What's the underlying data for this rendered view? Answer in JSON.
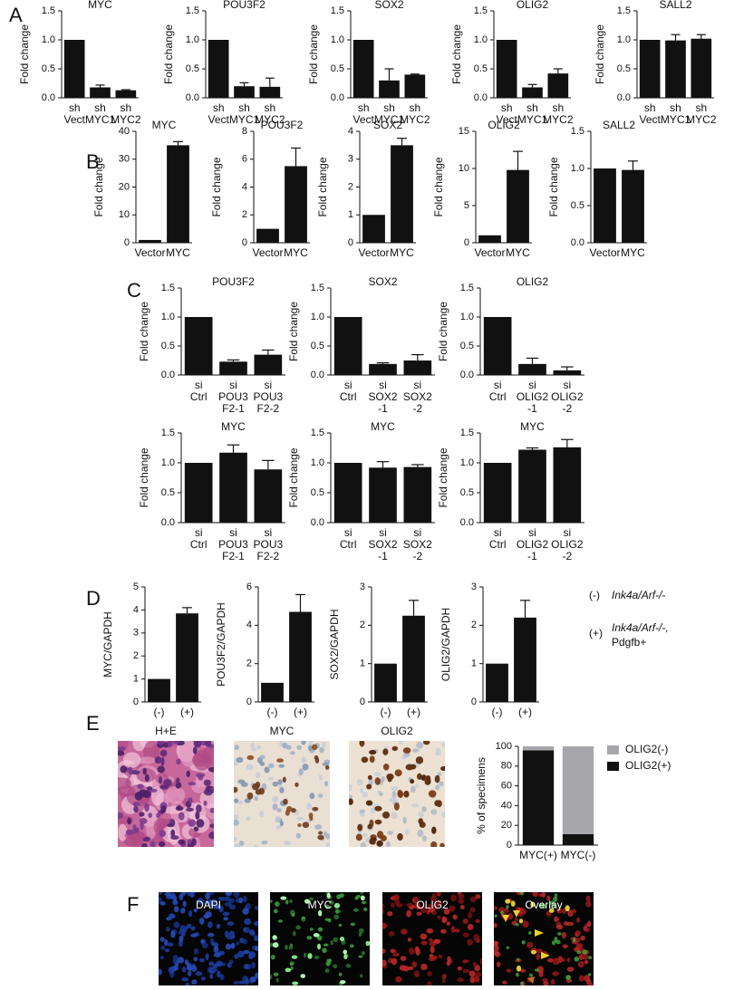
{
  "panel_labels": [
    "A",
    "B",
    "C",
    "D",
    "E",
    "F"
  ],
  "d_legend": [
    {
      "symbol": "(-)",
      "lines": [
        "Ink4a/Arf-/-"
      ]
    },
    {
      "symbol": "(+)",
      "lines": [
        "Ink4a/Arf-/-,",
        "Pdgfb+"
      ]
    }
  ],
  "panel_e_images": [
    "H+E",
    "MYC",
    "OLIG2"
  ],
  "panel_f_images": [
    "DAPI",
    "MYC",
    "OLIG2",
    "Overlay"
  ],
  "chart_data": [
    {
      "type": "bar",
      "title": "MYC",
      "ylabel": "Fold change",
      "color": "#111111",
      "categories": [
        [
          "sh",
          "Vect"
        ],
        [
          "sh",
          "MYC1"
        ],
        [
          "sh",
          "MYC2"
        ]
      ],
      "values": [
        1,
        0.18,
        0.13
      ],
      "errors": [
        null,
        0.04,
        0.01
      ],
      "ylim": [
        0,
        1.5
      ],
      "yticks": [
        {
          "value": 0,
          "label": "0.0"
        },
        {
          "value": 0.5,
          "label": "0.5"
        },
        {
          "value": 1,
          "label": "1.0"
        },
        {
          "value": 1.5,
          "label": "1.5"
        }
      ]
    },
    {
      "type": "bar",
      "title": "POU3F2",
      "ylabel": "Fold change",
      "color": "#111111",
      "categories": [
        [
          "sh",
          "Vect"
        ],
        [
          "sh",
          "MYC1"
        ],
        [
          "sh",
          "MYC2"
        ]
      ],
      "values": [
        1,
        0.2,
        0.19
      ],
      "errors": [
        null,
        0.06,
        0.15
      ],
      "ylim": [
        0,
        1.5
      ],
      "yticks": [
        {
          "value": 0,
          "label": "0.0"
        },
        {
          "value": 0.5,
          "label": "0.5"
        },
        {
          "value": 1,
          "label": "1.0"
        },
        {
          "value": 1.5,
          "label": "1.5"
        }
      ]
    },
    {
      "type": "bar",
      "title": "SOX2",
      "ylabel": "Fold change",
      "color": "#111111",
      "categories": [
        [
          "sh",
          "Vect"
        ],
        [
          "sh",
          "MYC1"
        ],
        [
          "sh",
          "MYC2"
        ]
      ],
      "values": [
        1,
        0.3,
        0.4
      ],
      "errors": [
        null,
        0.2,
        0.01
      ],
      "ylim": [
        0,
        1.5
      ],
      "yticks": [
        {
          "value": 0,
          "label": "0.0"
        },
        {
          "value": 0.5,
          "label": "0.5"
        },
        {
          "value": 1,
          "label": "1.0"
        },
        {
          "value": 1.5,
          "label": "1.5"
        }
      ]
    },
    {
      "type": "bar",
      "title": "OLIG2",
      "ylabel": "Fold change",
      "color": "#111111",
      "categories": [
        [
          "sh",
          "Vect"
        ],
        [
          "sh",
          "MYC1"
        ],
        [
          "sh",
          "MYC2"
        ]
      ],
      "values": [
        1,
        0.18,
        0.42
      ],
      "errors": [
        null,
        0.05,
        0.08
      ],
      "ylim": [
        0,
        1.5
      ],
      "yticks": [
        {
          "value": 0,
          "label": "0.0"
        },
        {
          "value": 0.5,
          "label": "0.5"
        },
        {
          "value": 1,
          "label": "1.0"
        },
        {
          "value": 1.5,
          "label": "1.5"
        }
      ]
    },
    {
      "type": "bar",
      "title": "SALL2",
      "ylabel": "Fold change",
      "color": "#111111",
      "categories": [
        [
          "sh",
          "Vect"
        ],
        [
          "sh",
          "MYC1"
        ],
        [
          "sh",
          "MYC2"
        ]
      ],
      "values": [
        1,
        0.99,
        1.02
      ],
      "errors": [
        null,
        0.1,
        0.07
      ],
      "ylim": [
        0,
        1.5
      ],
      "yticks": [
        {
          "value": 0,
          "label": "0.0"
        },
        {
          "value": 0.5,
          "label": "0.5"
        },
        {
          "value": 1,
          "label": "1.0"
        },
        {
          "value": 1.5,
          "label": "1.5"
        }
      ]
    },
    {
      "type": "bar",
      "title": "MYC",
      "ylabel": "Fold change",
      "color": "#111111",
      "categories": [
        [
          "Vector"
        ],
        [
          "MYC"
        ]
      ],
      "values": [
        1,
        35
      ],
      "errors": [
        null,
        1.3
      ],
      "ylim": [
        0,
        40
      ],
      "yticks": [
        0,
        10,
        20,
        30,
        40
      ]
    },
    {
      "type": "bar",
      "title": "POU3F2",
      "ylabel": "Fold change",
      "color": "#111111",
      "categories": [
        [
          "Vector"
        ],
        [
          "MYC"
        ]
      ],
      "values": [
        1,
        5.5
      ],
      "errors": [
        null,
        1.3
      ],
      "ylim": [
        0,
        8
      ],
      "yticks": [
        0,
        2,
        4,
        6,
        8
      ]
    },
    {
      "type": "bar",
      "title": "SOX2",
      "ylabel": "Fold change",
      "color": "#111111",
      "categories": [
        [
          "Vector"
        ],
        [
          "MYC"
        ]
      ],
      "values": [
        1,
        3.5
      ],
      "errors": [
        null,
        0.25
      ],
      "ylim": [
        0,
        4
      ],
      "yticks": [
        0,
        1,
        2,
        3,
        4
      ]
    },
    {
      "type": "bar",
      "title": "OLIG2",
      "ylabel": "Fold change",
      "color": "#111111",
      "categories": [
        [
          "Vector"
        ],
        [
          "MYC"
        ]
      ],
      "values": [
        1,
        9.8
      ],
      "errors": [
        null,
        2.5
      ],
      "ylim": [
        0,
        15
      ],
      "yticks": [
        0,
        5,
        10,
        15
      ]
    },
    {
      "type": "bar",
      "title": "SALL2",
      "ylabel": "Fold change",
      "color": "#111111",
      "categories": [
        [
          "Vector"
        ],
        [
          "MYC"
        ]
      ],
      "values": [
        1,
        0.98
      ],
      "errors": [
        null,
        0.12
      ],
      "ylim": [
        0,
        1.5
      ],
      "yticks": [
        {
          "value": 0,
          "label": "0.0"
        },
        {
          "value": 0.5,
          "label": "0.5"
        },
        {
          "value": 1,
          "label": "1.0"
        },
        {
          "value": 1.5,
          "label": "1.5"
        }
      ]
    },
    {
      "type": "bar",
      "title": "POU3F2",
      "ylabel": "Fold change",
      "color": "#111111",
      "categories": [
        [
          "si",
          "Ctrl"
        ],
        [
          "si",
          "POU3",
          "F2-1"
        ],
        [
          "si",
          "POU3",
          "F2-2"
        ]
      ],
      "values": [
        1,
        0.23,
        0.35
      ],
      "errors": [
        null,
        0.03,
        0.08
      ],
      "ylim": [
        0,
        1.5
      ],
      "yticks": [
        {
          "value": 0,
          "label": "0.0"
        },
        {
          "value": 0.5,
          "label": "0.5"
        },
        {
          "value": 1,
          "label": "1.0"
        },
        {
          "value": 1.5,
          "label": "1.5"
        }
      ]
    },
    {
      "type": "bar",
      "title": "SOX2",
      "ylabel": "Fold change",
      "color": "#111111",
      "categories": [
        [
          "si",
          "Ctrl"
        ],
        [
          "si",
          "SOX2",
          "-1"
        ],
        [
          "si",
          "SOX2",
          "-2"
        ]
      ],
      "values": [
        1,
        0.19,
        0.25
      ],
      "errors": [
        null,
        0.02,
        0.1
      ],
      "ylim": [
        0,
        1.5
      ],
      "yticks": [
        {
          "value": 0,
          "label": "0.0"
        },
        {
          "value": 0.5,
          "label": "0.5"
        },
        {
          "value": 1,
          "label": "1.0"
        },
        {
          "value": 1.5,
          "label": "1.5"
        }
      ]
    },
    {
      "type": "bar",
      "title": "OLIG2",
      "ylabel": "Fold change",
      "color": "#111111",
      "categories": [
        [
          "si",
          "Ctrl"
        ],
        [
          "si",
          "OLIG2",
          "-1"
        ],
        [
          "si",
          "OLIG2",
          "-2"
        ]
      ],
      "values": [
        1,
        0.19,
        0.08
      ],
      "errors": [
        null,
        0.1,
        0.06
      ],
      "ylim": [
        0,
        1.5
      ],
      "yticks": [
        {
          "value": 0,
          "label": "0.0"
        },
        {
          "value": 0.5,
          "label": "0.5"
        },
        {
          "value": 1,
          "label": "1.0"
        },
        {
          "value": 1.5,
          "label": "1.5"
        }
      ]
    },
    {
      "type": "bar",
      "title": "MYC",
      "ylabel": "Fold change",
      "color": "#111111",
      "categories": [
        [
          "si",
          "Ctrl"
        ],
        [
          "si",
          "POU3",
          "F2-1"
        ],
        [
          "si",
          "POU3",
          "F2-2"
        ]
      ],
      "values": [
        1,
        1.17,
        0.89
      ],
      "errors": [
        null,
        0.13,
        0.15
      ],
      "ylim": [
        0,
        1.5
      ],
      "yticks": [
        {
          "value": 0,
          "label": "0.0"
        },
        {
          "value": 0.5,
          "label": "0.5"
        },
        {
          "value": 1,
          "label": "1.0"
        },
        {
          "value": 1.5,
          "label": "1.5"
        }
      ]
    },
    {
      "type": "bar",
      "title": "MYC",
      "ylabel": "Fold change",
      "color": "#111111",
      "categories": [
        [
          "si",
          "Ctrl"
        ],
        [
          "si",
          "SOX2",
          "-1"
        ],
        [
          "si",
          "SOX2",
          "-2"
        ]
      ],
      "values": [
        1,
        0.92,
        0.93
      ],
      "errors": [
        null,
        0.1,
        0.04
      ],
      "ylim": [
        0,
        1.5
      ],
      "yticks": [
        {
          "value": 0,
          "label": "0.0"
        },
        {
          "value": 0.5,
          "label": "0.5"
        },
        {
          "value": 1,
          "label": "1.0"
        },
        {
          "value": 1.5,
          "label": "1.5"
        }
      ]
    },
    {
      "type": "bar",
      "title": "MYC",
      "ylabel": "Fold change",
      "color": "#111111",
      "categories": [
        [
          "si",
          "Ctrl"
        ],
        [
          "si",
          "OLIG2",
          "-1"
        ],
        [
          "si",
          "OLIG2",
          "-2"
        ]
      ],
      "values": [
        1,
        1.22,
        1.26
      ],
      "errors": [
        null,
        0.03,
        0.13
      ],
      "ylim": [
        0,
        1.5
      ],
      "yticks": [
        {
          "value": 0,
          "label": "0.0"
        },
        {
          "value": 0.5,
          "label": "0.5"
        },
        {
          "value": 1,
          "label": "1.0"
        },
        {
          "value": 1.5,
          "label": "1.5"
        }
      ]
    },
    {
      "type": "bar",
      "ylabel": "MYC/GAPDH",
      "color": "#111111",
      "categories": [
        [
          "(-)"
        ],
        [
          "(+)"
        ]
      ],
      "values": [
        1,
        3.85
      ],
      "errors": [
        null,
        0.25
      ],
      "ylim": [
        0,
        5
      ],
      "yticks": [
        0,
        1,
        2,
        3,
        4,
        5
      ]
    },
    {
      "type": "bar",
      "ylabel": "POU3F2/GAPDH",
      "color": "#111111",
      "categories": [
        [
          "(-)"
        ],
        [
          "(+)"
        ]
      ],
      "values": [
        1,
        4.7
      ],
      "errors": [
        null,
        0.9
      ],
      "ylim": [
        0,
        6
      ],
      "yticks": [
        0,
        2,
        4,
        6
      ]
    },
    {
      "type": "bar",
      "ylabel": "SOX2/GAPDH",
      "color": "#111111",
      "categories": [
        [
          "(-)"
        ],
        [
          "(+)"
        ]
      ],
      "values": [
        1,
        2.25
      ],
      "errors": [
        null,
        0.4
      ],
      "ylim": [
        0,
        3
      ],
      "yticks": [
        0,
        1,
        2,
        3
      ]
    },
    {
      "type": "bar",
      "ylabel": "OLIG2/GAPDH",
      "color": "#111111",
      "categories": [
        [
          "(-)"
        ],
        [
          "(+)"
        ]
      ],
      "values": [
        1,
        2.2
      ],
      "errors": [
        null,
        0.45
      ],
      "ylim": [
        0,
        3
      ],
      "yticks": [
        0,
        1,
        2,
        3
      ]
    },
    {
      "type": "stacked_bar",
      "ylabel": "% of specimens",
      "categories": [
        [
          "MYC(+)"
        ],
        [
          "MYC(-)"
        ]
      ],
      "series": [
        {
          "name": "OLIG2(+)",
          "color": "#111111",
          "values": [
            96,
            11
          ]
        },
        {
          "name": "OLIG2(-)",
          "color": "#a7a7ab",
          "values": [
            4,
            89
          ]
        }
      ],
      "ylim": [
        0,
        100
      ],
      "yticks": [
        0,
        20,
        40,
        60,
        80,
        100
      ],
      "legend": "right"
    }
  ]
}
